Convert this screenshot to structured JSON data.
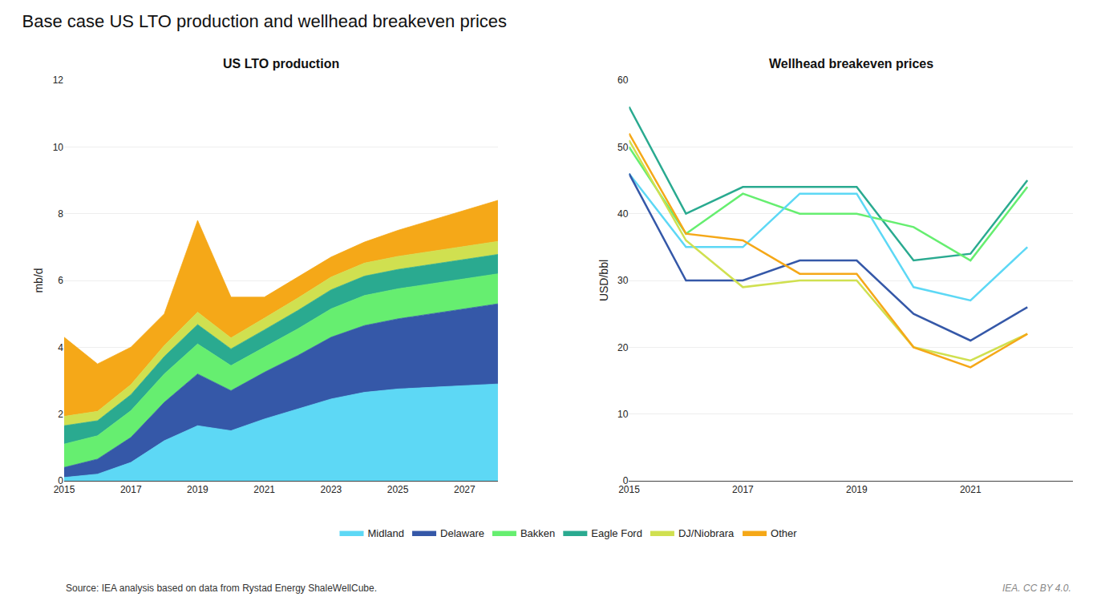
{
  "title": "Base case US LTO production and wellhead breakeven prices",
  "annotations": [
    "Source: IEA analysis based on data from Rystad Energy ShaleWellCube.",
    "IEA. CC BY 4.0."
  ],
  "legend": "bottom",
  "chart_data": [
    {
      "type": "area",
      "stacked": true,
      "title": "US LTO production",
      "y_label": "mb/d",
      "x": [
        2015,
        2016,
        2017,
        2018,
        2019,
        2020,
        2021,
        2022,
        2023,
        2024,
        2025,
        2026,
        2027,
        2028
      ],
      "series": [
        {
          "name": "Midland",
          "color": "#5dd8f5",
          "values": [
            0.1,
            0.2,
            0.55,
            1.2,
            1.65,
            1.5,
            1.85,
            2.15,
            2.45,
            2.65,
            2.75,
            2.8,
            2.85,
            2.9
          ]
        },
        {
          "name": "Delaware",
          "color": "#3558a8",
          "values": [
            0.3,
            0.45,
            0.75,
            1.15,
            1.55,
            1.2,
            1.4,
            1.6,
            1.85,
            2.0,
            2.1,
            2.2,
            2.3,
            2.4
          ]
        },
        {
          "name": "Bakken",
          "color": "#66ee70",
          "values": [
            0.7,
            0.7,
            0.8,
            0.85,
            0.9,
            0.75,
            0.75,
            0.8,
            0.85,
            0.9,
            0.9,
            0.9,
            0.9,
            0.9
          ]
        },
        {
          "name": "Eagle Ford",
          "color": "#2aaa90",
          "values": [
            0.55,
            0.45,
            0.48,
            0.52,
            0.58,
            0.5,
            0.52,
            0.55,
            0.57,
            0.58,
            0.58,
            0.58,
            0.58,
            0.58
          ]
        },
        {
          "name": "DJ/Niobrara",
          "color": "#d0e050",
          "values": [
            0.28,
            0.28,
            0.3,
            0.33,
            0.37,
            0.33,
            0.35,
            0.37,
            0.38,
            0.39,
            0.39,
            0.39,
            0.39,
            0.39
          ]
        },
        {
          "name": "Other",
          "color": "#f5a818",
          "values": [
            2.37,
            1.42,
            1.12,
            0.95,
            2.75,
            1.22,
            0.63,
            0.63,
            0.6,
            0.63,
            0.78,
            0.93,
            1.08,
            1.23
          ]
        }
      ],
      "xlim": [
        2015,
        2028
      ],
      "xticks": [
        2015,
        2017,
        2019,
        2021,
        2023,
        2025,
        2027
      ],
      "ylim": [
        0,
        12
      ],
      "yticks": [
        0,
        2,
        4,
        6,
        8,
        10,
        12
      ],
      "grid": true
    },
    {
      "type": "line",
      "title": "Wellhead breakeven prices",
      "y_label": "USD/bbl",
      "x": [
        2015,
        2016,
        2017,
        2018,
        2019,
        2020,
        2021,
        2022
      ],
      "series": [
        {
          "name": "Eagle Ford",
          "color": "#2aaa90",
          "values": [
            56,
            40,
            44,
            44,
            44,
            33,
            34,
            45
          ]
        },
        {
          "name": "Bakken",
          "color": "#66ee70",
          "values": [
            50,
            37,
            43,
            40,
            40,
            38,
            33,
            44
          ]
        },
        {
          "name": "Midland",
          "color": "#5dd8f5",
          "values": [
            46,
            35,
            35,
            43,
            43,
            29,
            27,
            35
          ]
        },
        {
          "name": "Delaware",
          "color": "#3558a8",
          "values": [
            46,
            30,
            30,
            33,
            33,
            25,
            21,
            26
          ]
        },
        {
          "name": "DJ/Niobrara",
          "color": "#d0e050",
          "values": [
            51,
            36,
            29,
            30,
            30,
            20,
            18,
            22
          ]
        },
        {
          "name": "Other",
          "color": "#f5a818",
          "values": [
            52,
            37,
            36,
            31,
            31,
            20,
            17,
            22
          ]
        }
      ],
      "xlim": [
        2015,
        2022.8
      ],
      "xticks": [
        2015,
        2017,
        2019,
        2021
      ],
      "ylim": [
        0,
        60
      ],
      "yticks": [
        0,
        10,
        20,
        30,
        40,
        50,
        60
      ],
      "grid": true
    }
  ]
}
